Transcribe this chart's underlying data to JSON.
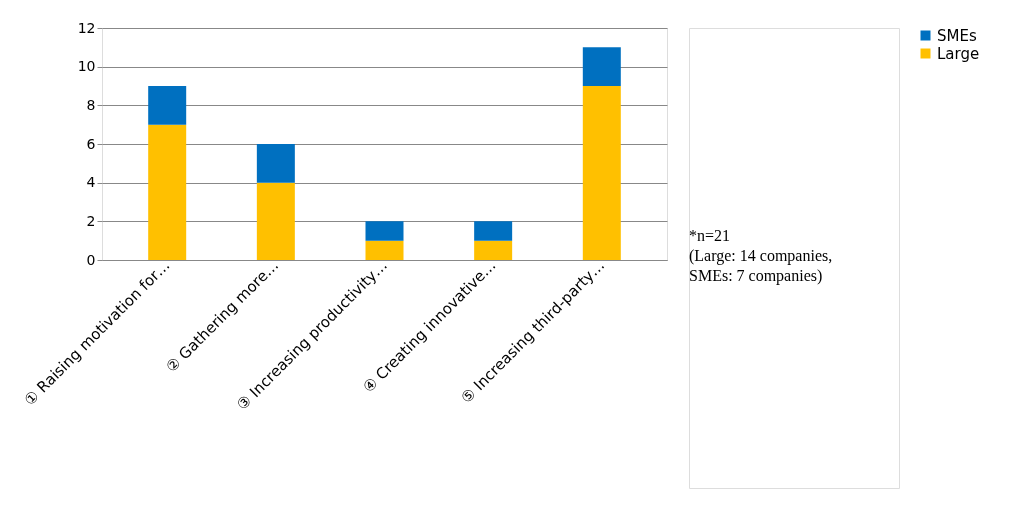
{
  "chart_data": {
    "type": "bar",
    "stacked": true,
    "categories": [
      "① Raising motivation for…",
      "② Gathering more…",
      "③ Increasing productivity…",
      "④ Creating innovative…",
      "⑤ Increasing third-party…"
    ],
    "series": [
      {
        "name": "Large",
        "color": "#ffc000",
        "values": [
          7,
          4,
          1,
          1,
          9
        ]
      },
      {
        "name": "SMEs",
        "color": "#0070c0",
        "values": [
          2,
          2,
          1,
          1,
          2
        ]
      }
    ],
    "ylim": [
      0,
      12
    ],
    "yticks": [
      0,
      2,
      4,
      6,
      8,
      10,
      12
    ],
    "grid": "y",
    "legend": "right",
    "annotations": [
      "*n=21\n(Large: 14 companies,\n SMEs: 7 companies)"
    ]
  }
}
